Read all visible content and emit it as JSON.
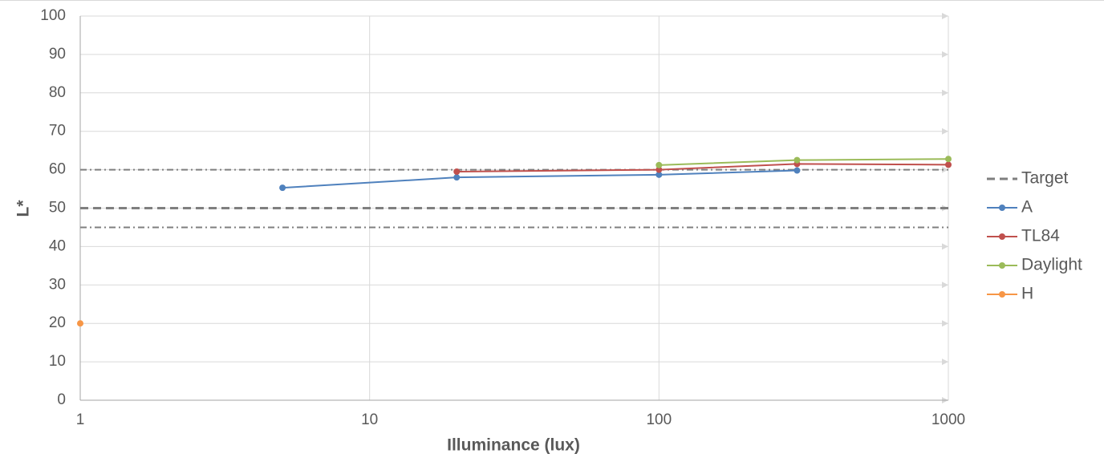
{
  "chart_data": {
    "type": "line",
    "x_label": "Illuminance (lux)",
    "y_label": "L*",
    "xscale": "log",
    "xlim": [
      1,
      1000
    ],
    "xticks": [
      1,
      10,
      100,
      1000
    ],
    "ylim": [
      0,
      100
    ],
    "yticks": [
      0,
      10,
      20,
      30,
      40,
      50,
      60,
      70,
      80,
      90,
      100
    ],
    "grid": true,
    "legend": "right",
    "reference_lines": [
      60,
      45
    ],
    "reference_color": "#7f7f7f",
    "series": [
      {
        "name": "Target",
        "color": "#7f7f7f",
        "style": "dashed",
        "x": [
          1,
          1000
        ],
        "values": [
          50,
          50
        ]
      },
      {
        "name": "A",
        "color": "#4f81bd",
        "x": [
          5,
          20,
          100,
          300
        ],
        "values": [
          55.3,
          58,
          58.7,
          59.8
        ]
      },
      {
        "name": "TL84",
        "color": "#c0504d",
        "x": [
          20,
          100,
          300,
          1000
        ],
        "values": [
          59.5,
          60,
          61.5,
          61.3
        ]
      },
      {
        "name": "Daylight",
        "color": "#9bbb59",
        "x": [
          100,
          300,
          1000
        ],
        "values": [
          61.2,
          62.5,
          62.8
        ]
      },
      {
        "name": "H",
        "color": "#f79646",
        "x": [
          1
        ],
        "values": [
          20
        ]
      }
    ]
  }
}
